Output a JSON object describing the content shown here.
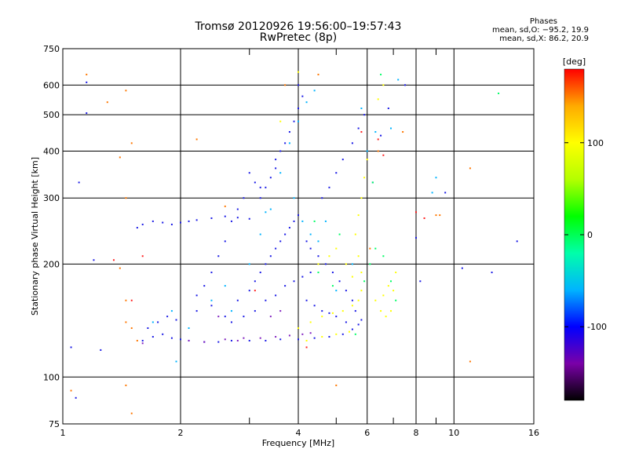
{
  "header": {
    "title_line1": "Tromsø 20120926 19:56:00–19:57:43",
    "title_line2": "RwPretec (8p)",
    "stats_heading": "Phases",
    "stats_o": "mean, sd,O: −95.2, 19.9",
    "stats_x": "mean, sd,X: 86.2, 20.9"
  },
  "chart_data": {
    "type": "scatter",
    "xlabel": "Frequency [MHz]",
    "ylabel": "Stationary phase Virtual Height [km]",
    "x_scale": "log",
    "y_scale": "log",
    "xlim": [
      1,
      16
    ],
    "ylim": [
      75,
      750
    ],
    "x_ticks": [
      1,
      2,
      4,
      6,
      8,
      10,
      16
    ],
    "y_ticks": [
      75,
      100,
      200,
      300,
      400,
      500,
      600,
      750
    ],
    "x_minor_ticks": [
      3,
      5,
      7,
      9
    ],
    "grid": true,
    "colorbar": {
      "label": "[deg]",
      "range": [
        -180,
        180
      ],
      "ticks": [
        100,
        0,
        -100
      ],
      "colormap": [
        "#000000",
        "#7a00a8",
        "#0000ff",
        "#00b4ff",
        "#00ffaa",
        "#00ff00",
        "#b4ff00",
        "#ffff00",
        "#ffaa00",
        "#ff0000"
      ]
    },
    "series": [
      {
        "color": "#1a1ae6",
        "points": [
          [
            1.6,
            125
          ],
          [
            1.7,
            128
          ],
          [
            1.8,
            130
          ],
          [
            1.9,
            127
          ],
          [
            2.0,
            126
          ],
          [
            2.1,
            125
          ],
          [
            2.3,
            124
          ],
          [
            2.5,
            124
          ],
          [
            2.7,
            125
          ],
          [
            3.0,
            125
          ],
          [
            3.3,
            125
          ],
          [
            3.6,
            126
          ],
          [
            4.0,
            126
          ],
          [
            4.4,
            127
          ],
          [
            4.8,
            128
          ],
          [
            5.2,
            130
          ],
          [
            5.5,
            134
          ],
          [
            5.7,
            138
          ],
          [
            5.8,
            142
          ],
          [
            1.65,
            135
          ],
          [
            1.75,
            140
          ],
          [
            1.85,
            145
          ],
          [
            1.95,
            142
          ],
          [
            2.2,
            150
          ],
          [
            2.4,
            155
          ],
          [
            2.6,
            145
          ],
          [
            2.8,
            160
          ],
          [
            3.0,
            170
          ],
          [
            3.1,
            180
          ],
          [
            3.2,
            190
          ],
          [
            3.3,
            200
          ],
          [
            3.4,
            210
          ],
          [
            3.5,
            220
          ],
          [
            3.6,
            230
          ],
          [
            3.7,
            240
          ],
          [
            3.8,
            250
          ],
          [
            3.9,
            260
          ],
          [
            4.0,
            270
          ],
          [
            3.2,
            300
          ],
          [
            3.3,
            320
          ],
          [
            3.4,
            340
          ],
          [
            3.5,
            360
          ],
          [
            3.5,
            380
          ],
          [
            3.6,
            400
          ],
          [
            3.7,
            420
          ],
          [
            3.8,
            450
          ],
          [
            3.9,
            480
          ],
          [
            4.0,
            520
          ],
          [
            4.1,
            560
          ],
          [
            4.0,
            600
          ],
          [
            4.2,
            230
          ],
          [
            4.3,
            220
          ],
          [
            4.5,
            210
          ],
          [
            4.7,
            200
          ],
          [
            4.9,
            190
          ],
          [
            5.1,
            180
          ],
          [
            5.3,
            170
          ],
          [
            5.5,
            160
          ],
          [
            5.6,
            150
          ],
          [
            3.0,
            350
          ],
          [
            3.1,
            330
          ],
          [
            3.2,
            320
          ],
          [
            2.9,
            300
          ],
          [
            2.8,
            280
          ],
          [
            2.7,
            260
          ],
          [
            2.6,
            230
          ],
          [
            2.5,
            210
          ],
          [
            2.4,
            190
          ],
          [
            2.3,
            175
          ],
          [
            2.2,
            165
          ],
          [
            1.55,
            250
          ],
          [
            1.6,
            255
          ],
          [
            1.7,
            260
          ],
          [
            1.8,
            258
          ],
          [
            1.9,
            255
          ],
          [
            2.0,
            258
          ],
          [
            2.1,
            260
          ],
          [
            2.2,
            262
          ],
          [
            2.4,
            265
          ],
          [
            2.6,
            268
          ],
          [
            2.8,
            266
          ],
          [
            3.0,
            264
          ],
          [
            4.6,
            300
          ],
          [
            4.8,
            320
          ],
          [
            5.0,
            350
          ],
          [
            5.2,
            380
          ],
          [
            5.5,
            420
          ],
          [
            5.7,
            460
          ],
          [
            5.9,
            500
          ],
          [
            4.2,
            160
          ],
          [
            4.4,
            155
          ],
          [
            4.6,
            150
          ],
          [
            4.8,
            148
          ],
          [
            5.0,
            145
          ],
          [
            5.3,
            140
          ],
          [
            3.7,
            175
          ],
          [
            3.9,
            180
          ],
          [
            4.1,
            185
          ],
          [
            4.3,
            190
          ],
          [
            3.5,
            165
          ],
          [
            3.3,
            160
          ],
          [
            3.1,
            150
          ],
          [
            2.9,
            145
          ],
          [
            2.7,
            140
          ],
          [
            1.15,
            610
          ],
          [
            1.15,
            505
          ],
          [
            1.1,
            330
          ],
          [
            1.2,
            205
          ],
          [
            1.05,
            120
          ],
          [
            1.08,
            88
          ],
          [
            1.25,
            118
          ],
          [
            6.2,
            330
          ],
          [
            6.5,
            440
          ],
          [
            6.8,
            520
          ],
          [
            7.5,
            600
          ],
          [
            8.0,
            235
          ],
          [
            8.2,
            180
          ],
          [
            9.5,
            310
          ],
          [
            10.5,
            195
          ],
          [
            12.5,
            190
          ],
          [
            14.5,
            230
          ]
        ]
      },
      {
        "color": "#00b4ff",
        "points": [
          [
            1.7,
            140
          ],
          [
            1.9,
            150
          ],
          [
            2.1,
            135
          ],
          [
            2.4,
            160
          ],
          [
            2.7,
            150
          ],
          [
            3.0,
            200
          ],
          [
            3.2,
            240
          ],
          [
            3.4,
            280
          ],
          [
            3.6,
            350
          ],
          [
            3.8,
            420
          ],
          [
            4.0,
            480
          ],
          [
            4.2,
            540
          ],
          [
            4.4,
            580
          ],
          [
            3.9,
            300
          ],
          [
            4.1,
            260
          ],
          [
            4.3,
            240
          ],
          [
            4.5,
            230
          ],
          [
            5.0,
            170
          ],
          [
            5.5,
            200
          ],
          [
            6.0,
            400
          ],
          [
            6.3,
            450
          ],
          [
            6.9,
            460
          ],
          [
            7.2,
            620
          ],
          [
            8.8,
            310
          ],
          [
            9.0,
            340
          ],
          [
            1.95,
            110
          ],
          [
            2.6,
            175
          ],
          [
            3.3,
            275
          ],
          [
            4.7,
            260
          ],
          [
            5.8,
            520
          ]
        ]
      },
      {
        "color": "#ffff00",
        "points": [
          [
            4.0,
            135
          ],
          [
            4.3,
            140
          ],
          [
            4.6,
            145
          ],
          [
            4.9,
            148
          ],
          [
            5.2,
            150
          ],
          [
            5.5,
            155
          ],
          [
            5.7,
            160
          ],
          [
            5.8,
            170
          ],
          [
            5.8,
            190
          ],
          [
            5.7,
            210
          ],
          [
            5.6,
            240
          ],
          [
            5.7,
            270
          ],
          [
            5.8,
            300
          ],
          [
            5.9,
            340
          ],
          [
            6.0,
            380
          ],
          [
            6.3,
            160
          ],
          [
            6.5,
            150
          ],
          [
            6.7,
            145
          ],
          [
            6.9,
            150
          ],
          [
            7.0,
            170
          ],
          [
            7.1,
            190
          ],
          [
            6.8,
            175
          ],
          [
            6.6,
            165
          ],
          [
            4.5,
            200
          ],
          [
            4.8,
            210
          ],
          [
            5.0,
            220
          ],
          [
            5.3,
            200
          ],
          [
            5.5,
            185
          ],
          [
            4.2,
            125
          ],
          [
            4.6,
            128
          ],
          [
            5.0,
            130
          ],
          [
            5.4,
            132
          ],
          [
            6.6,
            600
          ],
          [
            6.4,
            550
          ],
          [
            3.6,
            480
          ],
          [
            4.0,
            650
          ]
        ]
      },
      {
        "color": "#00ff66",
        "points": [
          [
            5.9,
            180
          ],
          [
            6.1,
            200
          ],
          [
            6.3,
            220
          ],
          [
            6.6,
            210
          ],
          [
            6.9,
            180
          ],
          [
            7.1,
            160
          ],
          [
            4.5,
            190
          ],
          [
            4.9,
            175
          ],
          [
            5.6,
            130
          ],
          [
            6.2,
            330
          ],
          [
            6.5,
            640
          ],
          [
            13,
            570
          ],
          [
            4.4,
            260
          ],
          [
            5.1,
            240
          ]
        ]
      },
      {
        "color": "#ff7700",
        "points": [
          [
            1.15,
            640
          ],
          [
            1.3,
            540
          ],
          [
            1.45,
            580
          ],
          [
            1.4,
            195
          ],
          [
            1.45,
            160
          ],
          [
            1.45,
            140
          ],
          [
            1.5,
            135
          ],
          [
            1.55,
            125
          ],
          [
            1.45,
            300
          ],
          [
            1.4,
            385
          ],
          [
            1.5,
            420
          ],
          [
            1.45,
            95
          ],
          [
            1.5,
            80
          ],
          [
            1.05,
            92
          ],
          [
            2.2,
            430
          ],
          [
            3.7,
            600
          ],
          [
            4.5,
            640
          ],
          [
            6.1,
            220
          ],
          [
            6.4,
            400
          ],
          [
            7.4,
            450
          ],
          [
            9.0,
            270
          ],
          [
            9.2,
            270
          ],
          [
            11,
            360
          ],
          [
            11,
            110
          ],
          [
            5.0,
            95
          ],
          [
            2.6,
            285
          ]
        ]
      },
      {
        "color": "#ff2020",
        "points": [
          [
            1.5,
            160
          ],
          [
            1.6,
            210
          ],
          [
            6.4,
            430
          ],
          [
            6.6,
            390
          ],
          [
            8.0,
            275
          ],
          [
            8.4,
            265
          ],
          [
            1.35,
            205
          ],
          [
            4.2,
            120
          ],
          [
            5.8,
            450
          ],
          [
            3.1,
            170
          ]
        ]
      },
      {
        "color": "#8020c0",
        "points": [
          [
            2.1,
            125
          ],
          [
            2.3,
            124
          ],
          [
            2.6,
            126
          ],
          [
            2.9,
            127
          ],
          [
            3.2,
            127
          ],
          [
            3.5,
            128
          ],
          [
            3.8,
            129
          ],
          [
            4.1,
            130
          ],
          [
            4.3,
            131
          ],
          [
            3.4,
            145
          ],
          [
            3.6,
            150
          ],
          [
            2.5,
            145
          ],
          [
            2.8,
            125
          ],
          [
            1.6,
            123
          ]
        ]
      }
    ]
  }
}
